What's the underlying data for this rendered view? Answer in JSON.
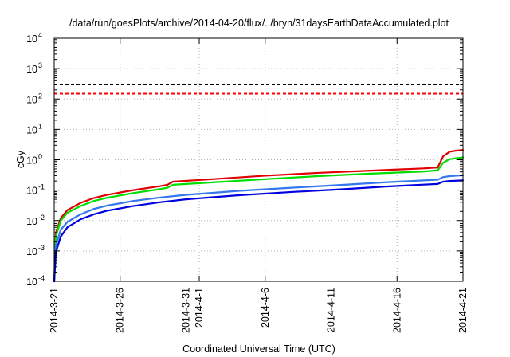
{
  "chart_data": {
    "type": "line",
    "title": "/data/run/goesPlots/archive/2014-04-20/flux/../bryn/31daysEarthDataAccumulated.plot",
    "xlabel": "Coordinated Universal Time (UTC)",
    "ylabel": "cGy",
    "y_scale": "log",
    "ylim": [
      0.0001,
      10000
    ],
    "y_ticks": [
      {
        "base": "10",
        "exp": "-4",
        "value": 0.0001
      },
      {
        "base": "10",
        "exp": "-3",
        "value": 0.001
      },
      {
        "base": "10",
        "exp": "-2",
        "value": 0.01
      },
      {
        "base": "10",
        "exp": "-1",
        "value": 0.1
      },
      {
        "base": "10",
        "exp": "0",
        "value": 1
      },
      {
        "base": "10",
        "exp": "1",
        "value": 10
      },
      {
        "base": "10",
        "exp": "2",
        "value": 100
      },
      {
        "base": "10",
        "exp": "3",
        "value": 1000
      },
      {
        "base": "10",
        "exp": "4",
        "value": 10000
      }
    ],
    "xlim": [
      "2014-03-21",
      "2014-04-21"
    ],
    "x_ticks": [
      "2014-3-21",
      "2014-3-26",
      "2014-3-31",
      "2014-4-1",
      "2014-4-6",
      "2014-4-11",
      "2014-4-16",
      "2014-4-21"
    ],
    "x_tick_dates": [
      "2014-03-21",
      "2014-03-26",
      "2014-03-31",
      "2014-04-01",
      "2014-04-06",
      "2014-04-11",
      "2014-04-16",
      "2014-04-21"
    ],
    "grid": true,
    "legend": "none",
    "thresholds": [
      {
        "value": 300,
        "color": "#000000",
        "style": "dashed"
      },
      {
        "value": 150,
        "color": "#ff0000",
        "style": "dashed"
      }
    ],
    "series": [
      {
        "color": "#e00000",
        "x": [
          "2014-03-21",
          "2014-03-21T03:00",
          "2014-03-21T12:00",
          "2014-03-22",
          "2014-03-23",
          "2014-03-24",
          "2014-03-25",
          "2014-03-27",
          "2014-03-29",
          "2014-03-29T14:00",
          "2014-03-30",
          "2014-04-02",
          "2014-04-06",
          "2014-04-10",
          "2014-04-14",
          "2014-04-18",
          "2014-04-19T02:00",
          "2014-04-19T12:00",
          "2014-04-20",
          "2014-04-20T12:00",
          "2014-04-21"
        ],
        "values": [
          0.0001,
          0.004,
          0.012,
          0.022,
          0.038,
          0.055,
          0.07,
          0.1,
          0.135,
          0.15,
          0.19,
          0.23,
          0.3,
          0.37,
          0.44,
          0.52,
          0.56,
          1.3,
          1.85,
          2.0,
          2.1
        ]
      },
      {
        "color": "#00dd00",
        "x": [
          "2014-03-21",
          "2014-03-21T03:00",
          "2014-03-21T12:00",
          "2014-03-22",
          "2014-03-23",
          "2014-03-24",
          "2014-03-25",
          "2014-03-27",
          "2014-03-29",
          "2014-03-29T14:00",
          "2014-03-30",
          "2014-04-02",
          "2014-04-06",
          "2014-04-10",
          "2014-04-14",
          "2014-04-18",
          "2014-04-19T02:00",
          "2014-04-19T12:00",
          "2014-04-20",
          "2014-04-20T12:00",
          "2014-04-21"
        ],
        "values": [
          0.0001,
          0.003,
          0.01,
          0.018,
          0.03,
          0.044,
          0.056,
          0.08,
          0.108,
          0.12,
          0.15,
          0.18,
          0.23,
          0.29,
          0.35,
          0.41,
          0.45,
          0.8,
          1.05,
          1.12,
          1.2
        ]
      },
      {
        "color": "#3377ee",
        "x": [
          "2014-03-21",
          "2014-03-21T03:00",
          "2014-03-21T12:00",
          "2014-03-22",
          "2014-03-23",
          "2014-03-24",
          "2014-03-25",
          "2014-03-27",
          "2014-03-29",
          "2014-03-31",
          "2014-04-04",
          "2014-04-08",
          "2014-04-12",
          "2014-04-15",
          "2014-04-18",
          "2014-04-19T02:00",
          "2014-04-19T12:00",
          "2014-04-20",
          "2014-04-21"
        ],
        "values": [
          0.0001,
          0.0015,
          0.005,
          0.009,
          0.016,
          0.024,
          0.031,
          0.044,
          0.057,
          0.07,
          0.095,
          0.12,
          0.15,
          0.18,
          0.21,
          0.22,
          0.27,
          0.29,
          0.31
        ]
      },
      {
        "color": "#0000dd",
        "x": [
          "2014-03-21",
          "2014-03-21T03:00",
          "2014-03-21T12:00",
          "2014-03-22",
          "2014-03-23",
          "2014-03-24",
          "2014-03-25",
          "2014-03-27",
          "2014-03-29",
          "2014-03-31",
          "2014-04-04",
          "2014-04-08",
          "2014-04-12",
          "2014-04-15",
          "2014-04-18",
          "2014-04-19T02:00",
          "2014-04-19T12:00",
          "2014-04-20",
          "2014-04-21"
        ],
        "values": [
          0.0001,
          0.0009,
          0.003,
          0.006,
          0.011,
          0.016,
          0.021,
          0.03,
          0.04,
          0.05,
          0.068,
          0.087,
          0.108,
          0.13,
          0.152,
          0.16,
          0.19,
          0.2,
          0.21
        ]
      }
    ]
  }
}
